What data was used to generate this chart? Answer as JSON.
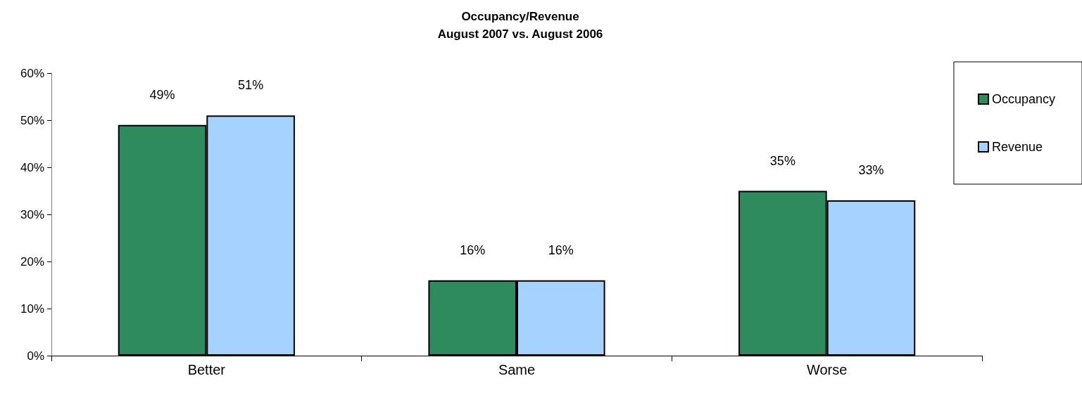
{
  "chart_data": {
    "type": "bar",
    "title": "Occupancy/Revenue",
    "subtitle": "August 2007 vs. August 2006",
    "categories": [
      "Better",
      "Same",
      "Worse"
    ],
    "series": [
      {
        "name": "Occupancy",
        "color": "#2e8b5e",
        "values": [
          49,
          16,
          35
        ],
        "value_labels": [
          "49%",
          "16%",
          "35%"
        ]
      },
      {
        "name": "Revenue",
        "color": "#a6d2ff",
        "values": [
          51,
          16,
          33
        ],
        "value_labels": [
          "51%",
          "16%",
          "33%"
        ]
      }
    ],
    "ylim": [
      0,
      60
    ],
    "yticks": [
      {
        "value": 0,
        "label": "0%"
      },
      {
        "value": 10,
        "label": "10%"
      },
      {
        "value": 20,
        "label": "20%"
      },
      {
        "value": 30,
        "label": "30%"
      },
      {
        "value": 40,
        "label": "40%"
      },
      {
        "value": 50,
        "label": "50%"
      },
      {
        "value": 60,
        "label": "60%"
      }
    ],
    "grid": false,
    "legend": "top right"
  }
}
